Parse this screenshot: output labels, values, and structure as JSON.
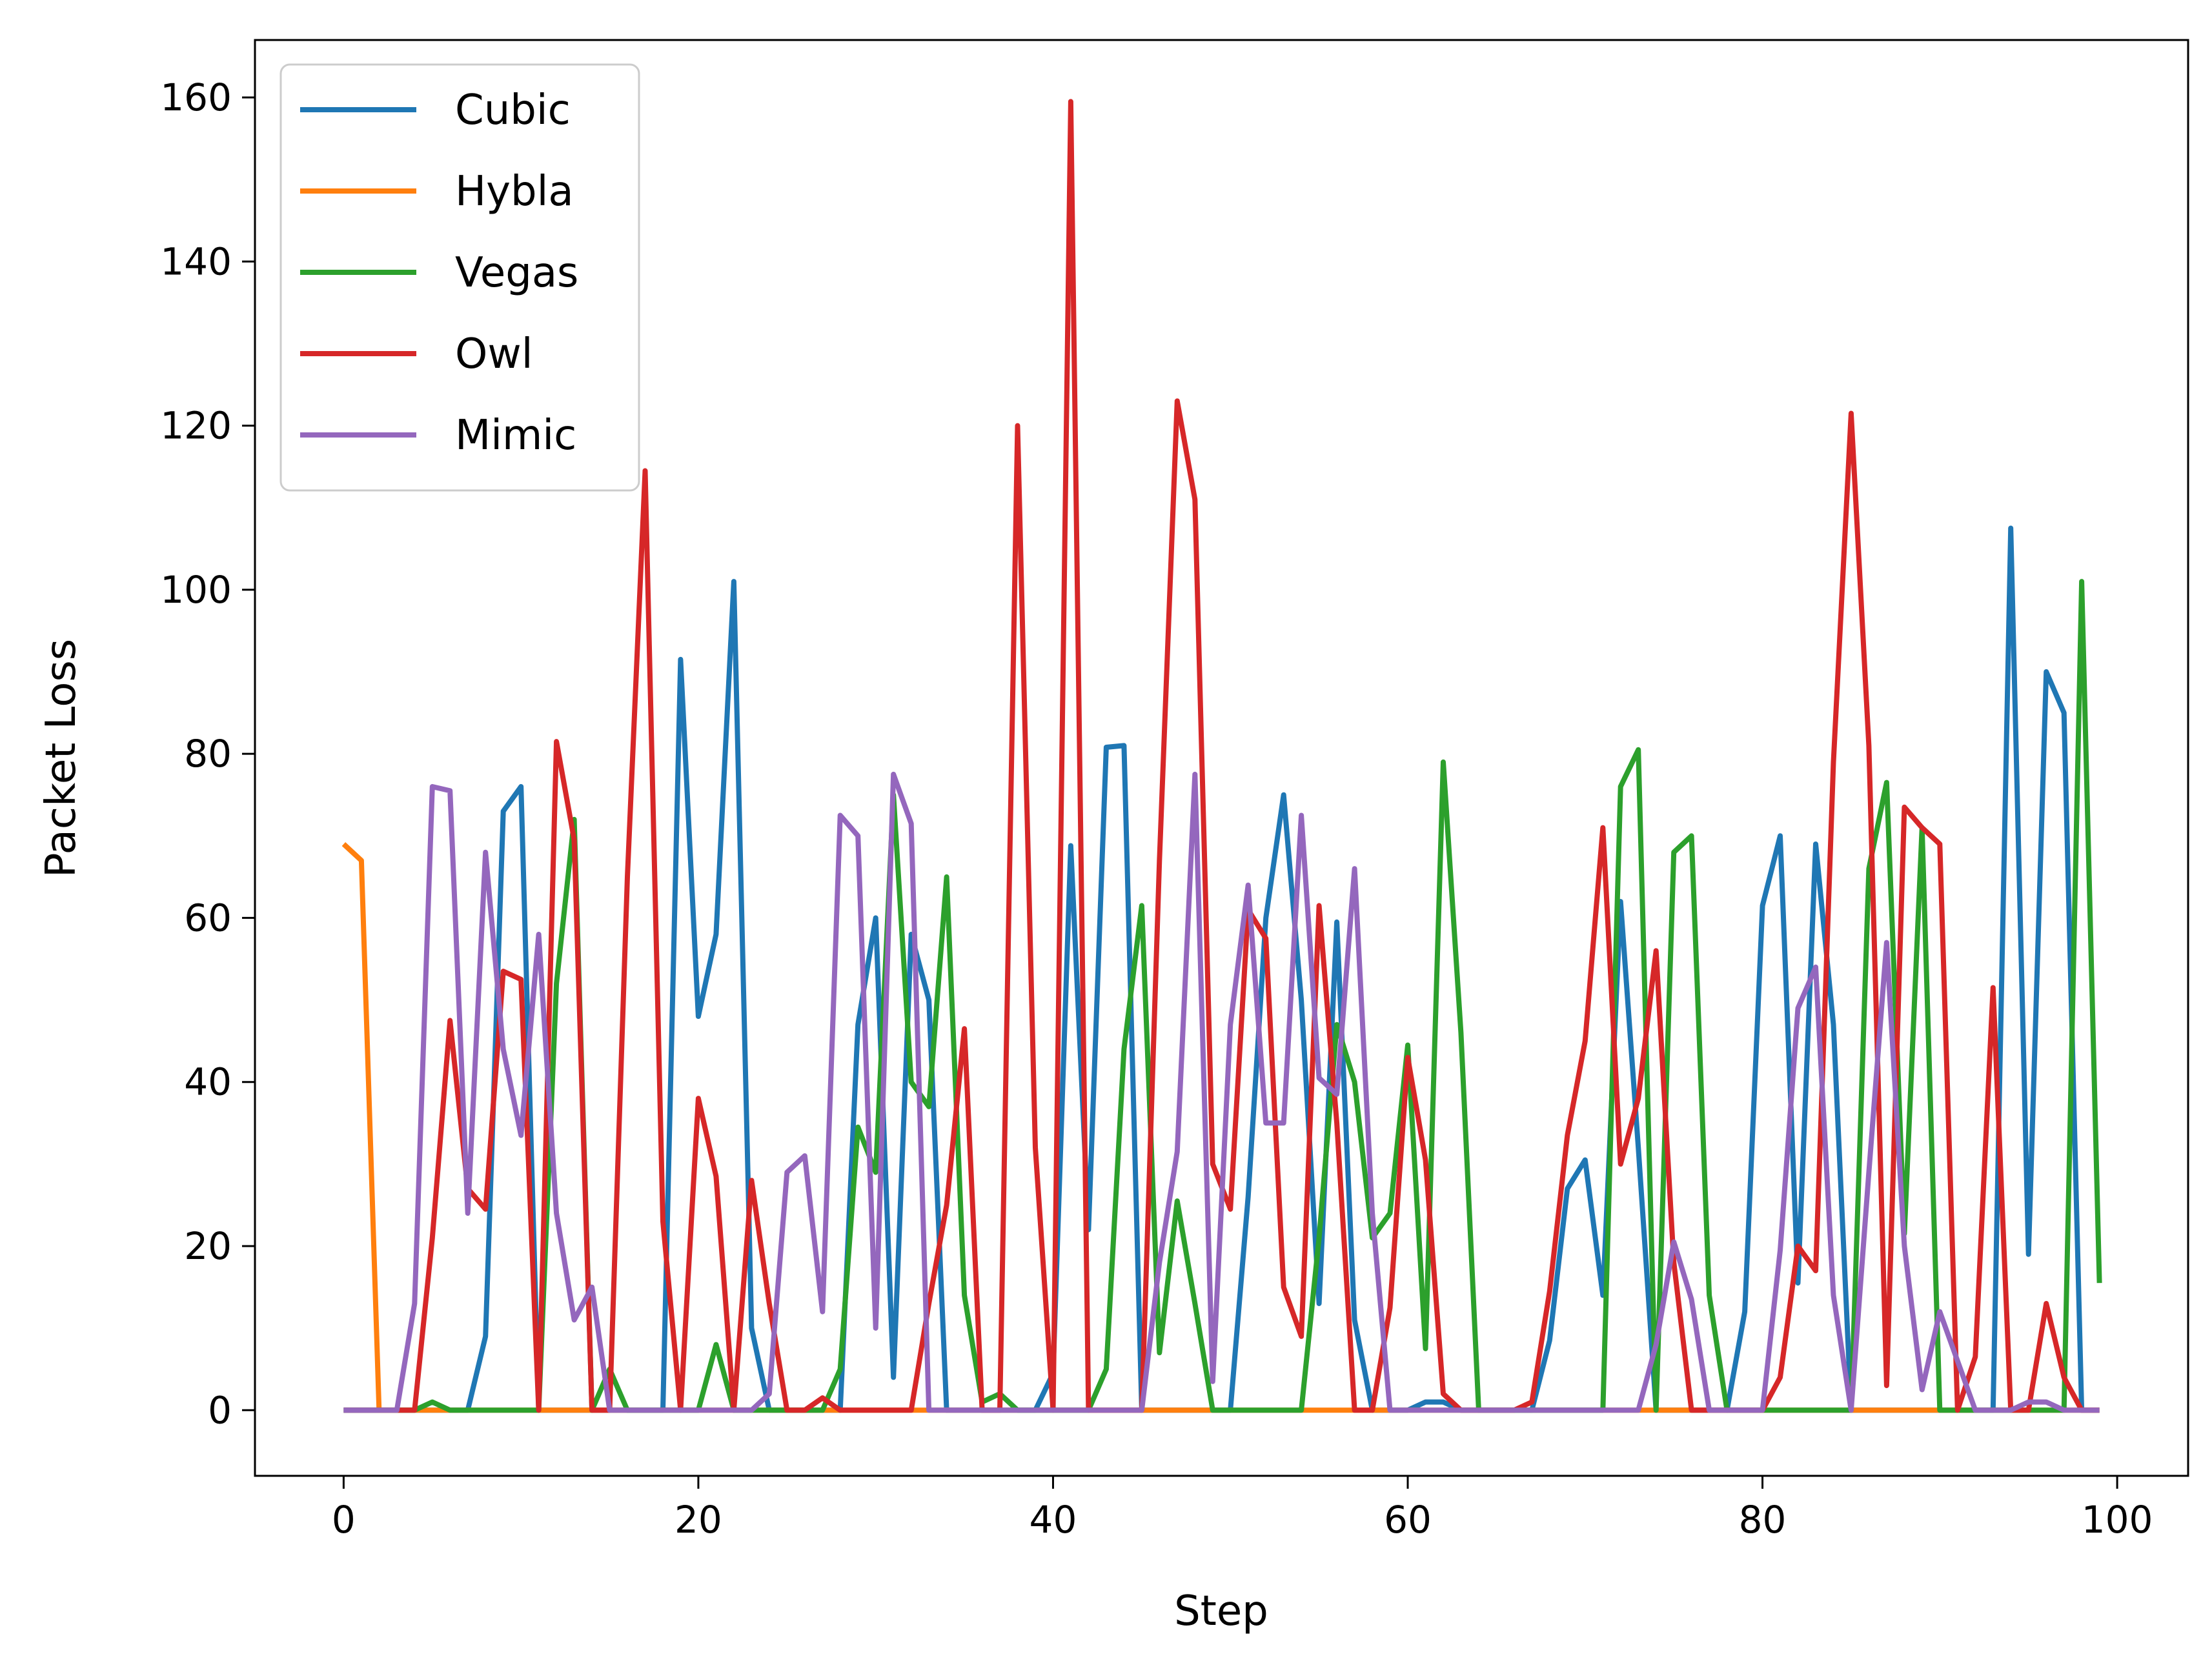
{
  "chart_data": {
    "type": "line",
    "title": "",
    "xlabel": "Step",
    "ylabel": "Packet Loss",
    "xlim": [
      -5,
      104
    ],
    "ylim": [
      -8,
      167
    ],
    "xticks": [
      0,
      20,
      40,
      60,
      80,
      100
    ],
    "yticks": [
      0,
      20,
      40,
      60,
      80,
      100,
      120,
      140,
      160
    ],
    "grid": false,
    "legend_position": "top-left",
    "x": [
      0,
      1,
      2,
      3,
      4,
      5,
      6,
      7,
      8,
      9,
      10,
      11,
      12,
      13,
      14,
      15,
      16,
      17,
      18,
      19,
      20,
      21,
      22,
      23,
      24,
      25,
      26,
      27,
      28,
      29,
      30,
      31,
      32,
      33,
      34,
      35,
      36,
      37,
      38,
      39,
      40,
      41,
      42,
      43,
      44,
      45,
      46,
      47,
      48,
      49,
      50,
      51,
      52,
      53,
      54,
      55,
      56,
      57,
      58,
      59,
      60,
      61,
      62,
      63,
      64,
      65,
      66,
      67,
      68,
      69,
      70,
      71,
      72,
      73,
      74,
      75,
      76,
      77,
      78,
      79,
      80,
      81,
      82,
      83,
      84,
      85,
      86,
      87,
      88,
      89,
      90,
      91,
      92,
      93,
      94,
      95,
      96,
      97,
      98,
      99
    ],
    "series": [
      {
        "name": "Cubic",
        "color": "#1f77b4",
        "values": [
          0,
          0,
          0,
          0,
          0,
          0,
          0,
          0,
          9,
          73,
          76,
          0,
          0,
          0,
          0,
          0,
          0,
          0,
          0,
          91.5,
          48,
          58,
          101,
          10,
          0,
          0,
          0,
          0,
          0,
          47,
          60,
          4,
          58,
          50,
          0,
          0,
          0,
          0,
          0,
          0,
          4.5,
          68.8,
          22,
          80.8,
          81,
          0,
          0,
          0,
          0,
          0,
          0,
          26,
          60,
          75,
          50,
          13,
          59.5,
          11,
          0,
          0,
          0,
          1,
          1,
          0,
          0,
          0,
          0,
          0,
          8.5,
          27,
          30.5,
          14,
          62,
          32,
          0,
          0,
          0,
          0,
          0,
          12,
          61.5,
          70,
          15.5,
          69,
          47,
          0,
          0,
          0,
          0,
          0,
          0,
          0,
          0,
          0,
          107.5,
          19,
          90,
          85,
          0,
          0
        ]
      },
      {
        "name": "Hybla",
        "color": "#ff7f0e",
        "values": [
          69,
          67,
          0,
          0,
          0,
          0,
          0,
          0,
          0,
          0,
          0,
          0,
          0,
          0,
          0,
          0,
          0,
          0,
          0,
          0,
          0,
          0,
          0,
          0,
          0,
          0,
          0,
          0,
          0,
          0,
          0,
          0,
          0,
          0,
          0,
          0,
          0,
          0,
          0,
          0,
          0,
          0,
          0,
          0,
          0,
          0,
          0,
          0,
          0,
          0,
          0,
          0,
          0,
          0,
          0,
          0,
          0,
          0,
          0,
          0,
          0,
          0,
          0,
          0,
          0,
          0,
          0,
          0,
          0,
          0,
          0,
          0,
          0,
          0,
          0,
          0,
          0,
          0,
          0,
          0,
          0,
          0,
          0,
          0,
          0,
          0,
          0,
          0,
          0,
          0,
          0,
          0,
          0,
          0,
          0,
          0,
          0,
          0,
          0,
          0
        ]
      },
      {
        "name": "Vegas",
        "color": "#2ca02c",
        "values": [
          0,
          0,
          0,
          0,
          0,
          1,
          0,
          0,
          0,
          0,
          0,
          0,
          52,
          72,
          0,
          5,
          0,
          0,
          0,
          0,
          0,
          8,
          0,
          0,
          0,
          0,
          0,
          0,
          5,
          34.5,
          29,
          75,
          40,
          37,
          65,
          14,
          1,
          2,
          0,
          0,
          0,
          0,
          0,
          5,
          44,
          61.5,
          7,
          25.5,
          13,
          0,
          0,
          0,
          0,
          0,
          0,
          21,
          47,
          40,
          21,
          24,
          44.5,
          7.5,
          79,
          46,
          0,
          0,
          0,
          0,
          0,
          0,
          0,
          0,
          76,
          80.5,
          0,
          68,
          70,
          14,
          0,
          0,
          0,
          0,
          0,
          0,
          0,
          0,
          66,
          76.5,
          21.5,
          71,
          0,
          0,
          0,
          0,
          0,
          0,
          0,
          0,
          101,
          15.5
        ]
      },
      {
        "name": "Owl",
        "color": "#d62728",
        "values": [
          0,
          0,
          0,
          0,
          0,
          21,
          47.5,
          27,
          24.5,
          53.5,
          52.5,
          0,
          81.5,
          69.5,
          0,
          0,
          65,
          114.5,
          23,
          0,
          38,
          28.5,
          0,
          28,
          13,
          0,
          0,
          1.5,
          0,
          0,
          0,
          0,
          0,
          13,
          25,
          46.5,
          0,
          0,
          120,
          32,
          0,
          159.5,
          0,
          0,
          0,
          0,
          67,
          123,
          111,
          30,
          24.5,
          61,
          57.5,
          15,
          9,
          61.5,
          35,
          0,
          0,
          12.5,
          43,
          30.5,
          2,
          0,
          0,
          0,
          0,
          1,
          14.5,
          33.5,
          45,
          71,
          30,
          38,
          56,
          18,
          0,
          0,
          0,
          0,
          0,
          4,
          20,
          17,
          79,
          121.5,
          81,
          3,
          73.5,
          71,
          69,
          0,
          6.5,
          51.5,
          0,
          0,
          13,
          4,
          0,
          0
        ]
      },
      {
        "name": "Mimic",
        "color": "#9467bd",
        "values": [
          0,
          0,
          0,
          0,
          13,
          76,
          75.5,
          24,
          68,
          44,
          33.5,
          58,
          24,
          11,
          15,
          0,
          0,
          0,
          0,
          0,
          0,
          0,
          0,
          0,
          2,
          29,
          31,
          12,
          72.5,
          70,
          10,
          77.5,
          71.5,
          0,
          0,
          0,
          0,
          0,
          0,
          0,
          0,
          0,
          0,
          0,
          0,
          0,
          18,
          31.5,
          77.5,
          3.5,
          47,
          64,
          35,
          35,
          72.5,
          40.5,
          38.5,
          66,
          24,
          0,
          0,
          0,
          0,
          0,
          0,
          0,
          0,
          0,
          0,
          0,
          0,
          0,
          0,
          0,
          8,
          20.5,
          13.5,
          0,
          0,
          0,
          0,
          19.5,
          49,
          54,
          14,
          0,
          29,
          57,
          20,
          2.5,
          12,
          6,
          0,
          0,
          0,
          1,
          1,
          0,
          0,
          0
        ]
      }
    ]
  }
}
